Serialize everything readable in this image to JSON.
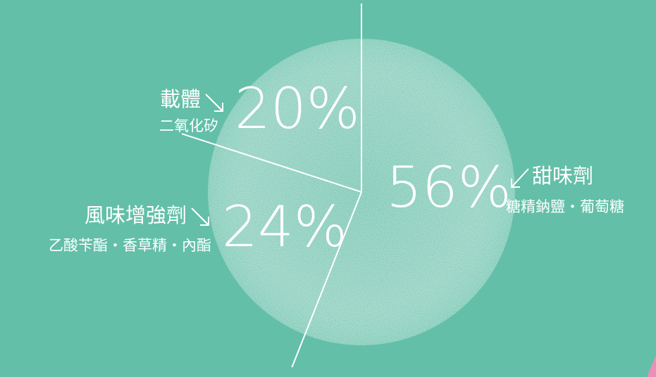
{
  "chart_data": {
    "type": "pie",
    "categories": [
      "甜味劑",
      "風味增強劑",
      "載體"
    ],
    "descriptions": [
      "糖精鈉鹽・葡萄糖",
      "乙酸苄酯・香草精・內酯",
      "二氧化矽"
    ],
    "values": [
      56,
      24,
      20
    ],
    "value_labels": [
      "56%",
      "24%",
      "20%"
    ],
    "color": "#63bfa8"
  }
}
